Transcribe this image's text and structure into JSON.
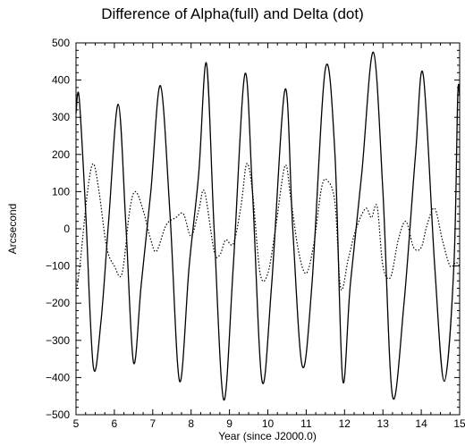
{
  "chart_data": {
    "type": "line",
    "title": "Difference of Alpha(full) and Delta (dot)",
    "xlabel": "Year (since J2000.0)",
    "ylabel": "Arcsecond",
    "xlim": [
      5,
      15
    ],
    "ylim": [
      -500,
      500
    ],
    "x_ticks": [
      5,
      6,
      7,
      8,
      9,
      10,
      11,
      12,
      13,
      14,
      15
    ],
    "x_tick_labels": [
      "5",
      "6",
      "7",
      "8",
      "9",
      "10",
      "11",
      "12",
      "13",
      "14",
      "15"
    ],
    "y_ticks": [
      -500,
      -400,
      -300,
      -200,
      -100,
      0,
      100,
      200,
      300,
      400,
      500
    ],
    "y_tick_labels": [
      "−500",
      "−400",
      "−300",
      "−200",
      "−100",
      "0",
      "100",
      "200",
      "300",
      "400",
      "500"
    ],
    "grid": false,
    "series": [
      {
        "style": "solid",
        "x": [
          5.0,
          5.08,
          5.25,
          5.45,
          5.65,
          5.85,
          6.1,
          6.3,
          6.5,
          6.7,
          6.95,
          7.2,
          7.45,
          7.7,
          7.95,
          8.2,
          8.4,
          8.6,
          8.85,
          9.1,
          9.4,
          9.6,
          9.85,
          10.1,
          10.45,
          10.65,
          10.9,
          11.15,
          11.5,
          11.75,
          11.95,
          12.15,
          12.45,
          12.75,
          13.0,
          13.25,
          13.55,
          13.85,
          14.05,
          14.35,
          14.6,
          14.85,
          14.95,
          15.0
        ],
        "y": [
          310,
          355,
          50,
          -370,
          -250,
          20,
          335,
          10,
          -360,
          -150,
          100,
          385,
          40,
          -410,
          -100,
          150,
          445,
          0,
          -460,
          -100,
          415,
          100,
          -410,
          -150,
          375,
          0,
          -370,
          -150,
          430,
          200,
          -405,
          -150,
          150,
          475,
          100,
          -450,
          -200,
          200,
          415,
          -100,
          -410,
          -100,
          355,
          355
        ]
      },
      {
        "style": "dotted",
        "x": [
          5.0,
          5.1,
          5.3,
          5.45,
          5.6,
          5.8,
          6.0,
          6.2,
          6.4,
          6.55,
          6.75,
          6.95,
          7.1,
          7.35,
          7.6,
          7.8,
          8.0,
          8.2,
          8.35,
          8.6,
          8.75,
          8.9,
          9.1,
          9.3,
          9.45,
          9.6,
          9.8,
          10.0,
          10.2,
          10.45,
          10.6,
          10.8,
          11.0,
          11.2,
          11.4,
          11.55,
          11.75,
          11.9,
          12.1,
          12.3,
          12.55,
          12.7,
          12.85,
          13.0,
          13.2,
          13.4,
          13.6,
          13.8,
          14.0,
          14.15,
          14.35,
          14.55,
          14.75,
          14.9,
          15.0
        ],
        "y": [
          -170,
          -100,
          100,
          175,
          100,
          -50,
          -100,
          -120,
          50,
          100,
          50,
          -30,
          -60,
          10,
          30,
          40,
          -20,
          50,
          100,
          -60,
          -70,
          -30,
          -40,
          60,
          175,
          100,
          -120,
          -120,
          0,
          170,
          80,
          -60,
          -120,
          -40,
          110,
          130,
          70,
          -160,
          -80,
          0,
          55,
          30,
          60,
          -100,
          -130,
          -30,
          20,
          -50,
          -50,
          10,
          55,
          -30,
          -100,
          -90,
          -100
        ]
      }
    ]
  }
}
